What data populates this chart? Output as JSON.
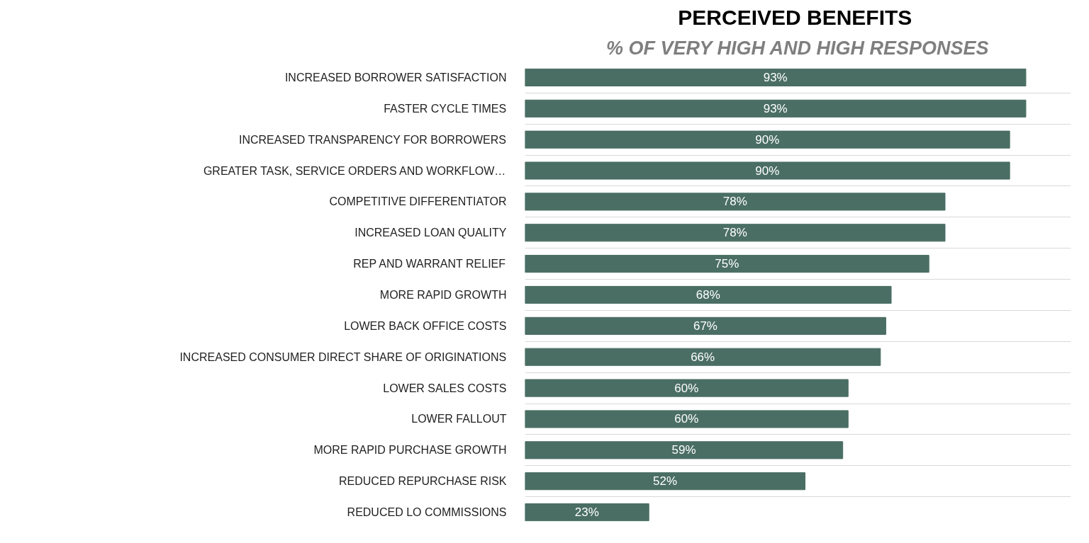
{
  "chart_data": {
    "type": "bar",
    "orientation": "horizontal",
    "title": "PERCEIVED  BENEFITS",
    "subtitle": "% OF VERY HIGH AND HIGH RESPONSES",
    "categories": [
      "INCREASED BORROWER SATISFACTION",
      "FASTER CYCLE TIMES",
      "INCREASED TRANSPARENCY FOR BORROWERS",
      "GREATER TASK, SERVICE ORDERS AND WORKFLOW…",
      "COMPETITIVE DIFFERENTIATOR",
      "INCREASED LOAN QUALITY",
      "REP AND WARRANT RELIEF",
      "MORE RAPID GROWTH",
      "LOWER BACK OFFICE COSTS",
      "INCREASED CONSUMER DIRECT SHARE OF ORIGINATIONS",
      "LOWER SALES COSTS",
      "LOWER FALLOUT",
      "MORE RAPID PURCHASE GROWTH",
      "REDUCED REPURCHASE RISK",
      "REDUCED LO COMMISSIONS"
    ],
    "values": [
      93,
      93,
      90,
      90,
      78,
      78,
      75,
      68,
      67,
      66,
      60,
      60,
      59,
      52,
      23
    ],
    "value_labels": [
      "93%",
      "93%",
      "90%",
      "90%",
      "78%",
      "78%",
      "75%",
      "68%",
      "67%",
      "66%",
      "60%",
      "60%",
      "59%",
      "52%",
      "23%"
    ],
    "color": "#4a6e64",
    "grid": "y",
    "tick_labels": "y"
  }
}
